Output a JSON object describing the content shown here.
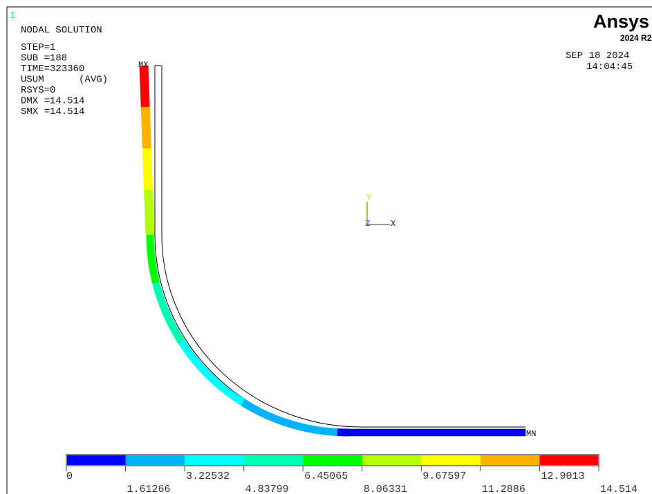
{
  "window_number": "1",
  "title": "NODAL SOLUTION",
  "info": [
    "STEP=1",
    "SUB =188",
    "TIME=323360",
    "USUM      (AVG)",
    "RSYS=0",
    "DMX =14.514",
    "SMX =14.514"
  ],
  "date": "SEP 18 2024",
  "time": "14:04:45",
  "logo": {
    "name": "Ansys",
    "version": "2024 R2"
  },
  "labels": {
    "max": "MX",
    "min": "MN"
  },
  "triad": {
    "y": "Y",
    "z": "Z",
    "x": "X"
  },
  "legend": {
    "ticks": [
      0,
      1.61266,
      3.22532,
      4.83799,
      6.45065,
      8.06331,
      9.67597,
      11.2886,
      12.9013,
      14.514
    ],
    "colors": [
      "#0000ff",
      "#00b2ff",
      "#00ffff",
      "#00ffb2",
      "#00ff00",
      "#b2ff00",
      "#ffff00",
      "#ffb200",
      "#ff0000"
    ]
  }
}
